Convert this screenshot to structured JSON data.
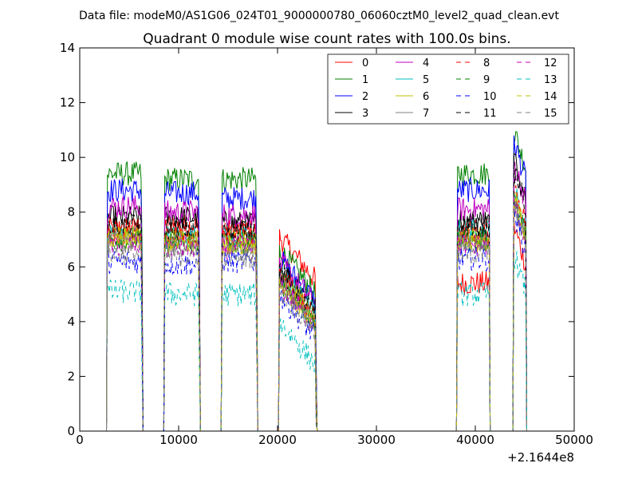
{
  "suptitle": "Data file: modeM0/AS1G06_024T01_9000000780_06060cztM0_level2_quad_clean.evt",
  "chart_data": {
    "type": "line",
    "title": "Quadrant 0 module wise count rates with 100.0s bins.",
    "xlabel": "",
    "ylabel": "",
    "x_offset_label": "+2.1644e8",
    "xlim": [
      0,
      50000
    ],
    "ylim": [
      0,
      14
    ],
    "x_ticks": [
      "0",
      "10000",
      "20000",
      "30000",
      "40000",
      "50000"
    ],
    "y_ticks": [
      "0",
      "2",
      "4",
      "6",
      "8",
      "10",
      "12",
      "14"
    ],
    "grid": false,
    "legend_position": "top-right",
    "legend_columns": 4,
    "gti_segments": [
      [
        2800,
        6300
      ],
      [
        8600,
        12100
      ],
      [
        14400,
        17900
      ],
      [
        20200,
        23900
      ],
      [
        38200,
        41400
      ],
      [
        43900,
        45100
      ]
    ],
    "series": [
      {
        "name": "0",
        "color": "#ff0000",
        "dash": "solid",
        "levels": [
          7.4,
          7.5,
          7.3,
          7.1,
          5.4,
          7.5
        ]
      },
      {
        "name": "1",
        "color": "#008000",
        "dash": "solid",
        "levels": [
          9.4,
          9.2,
          9.2,
          6.6,
          9.4,
          11.0
        ]
      },
      {
        "name": "2",
        "color": "#0000ff",
        "dash": "solid",
        "levels": [
          8.8,
          8.7,
          8.5,
          6.3,
          8.8,
          10.6
        ]
      },
      {
        "name": "3",
        "color": "#000000",
        "dash": "solid",
        "levels": [
          7.8,
          7.8,
          7.6,
          6.0,
          7.7,
          10.0
        ]
      },
      {
        "name": "4",
        "color": "#bf00bf",
        "dash": "solid",
        "levels": [
          8.2,
          8.0,
          7.9,
          6.2,
          8.1,
          9.8
        ]
      },
      {
        "name": "5",
        "color": "#00bfbf",
        "dash": "solid",
        "levels": [
          7.2,
          7.1,
          7.0,
          5.8,
          7.3,
          8.8
        ]
      },
      {
        "name": "6",
        "color": "#bfbf00",
        "dash": "solid",
        "levels": [
          7.1,
          7.0,
          6.9,
          5.6,
          7.0,
          8.6
        ]
      },
      {
        "name": "7",
        "color": "#808080",
        "dash": "solid",
        "levels": [
          6.9,
          6.8,
          6.8,
          5.5,
          6.9,
          8.4
        ]
      },
      {
        "name": "8",
        "color": "#ff0000",
        "dash": "dashed",
        "levels": [
          7.3,
          7.2,
          7.2,
          5.7,
          7.3,
          9.0
        ]
      },
      {
        "name": "9",
        "color": "#008000",
        "dash": "dashed",
        "levels": [
          7.0,
          6.9,
          6.9,
          5.5,
          7.0,
          8.6
        ]
      },
      {
        "name": "10",
        "color": "#0000ff",
        "dash": "dashed",
        "levels": [
          6.2,
          6.1,
          6.2,
          5.0,
          6.3,
          8.0
        ]
      },
      {
        "name": "11",
        "color": "#000000",
        "dash": "dashed",
        "levels": [
          7.5,
          7.4,
          7.4,
          5.9,
          7.5,
          9.6
        ]
      },
      {
        "name": "12",
        "color": "#bf00bf",
        "dash": "dashed",
        "levels": [
          6.8,
          6.7,
          6.7,
          5.4,
          6.8,
          8.4
        ]
      },
      {
        "name": "13",
        "color": "#00bfbf",
        "dash": "dashed",
        "levels": [
          5.1,
          5.0,
          5.0,
          4.0,
          5.0,
          6.5
        ]
      },
      {
        "name": "14",
        "color": "#bfbf00",
        "dash": "dashed",
        "levels": [
          7.0,
          6.9,
          6.9,
          5.5,
          6.9,
          8.6
        ]
      },
      {
        "name": "15",
        "color": "#808080",
        "dash": "dashed",
        "levels": [
          6.5,
          6.4,
          6.4,
          5.2,
          6.5,
          8.2
        ]
      }
    ]
  }
}
